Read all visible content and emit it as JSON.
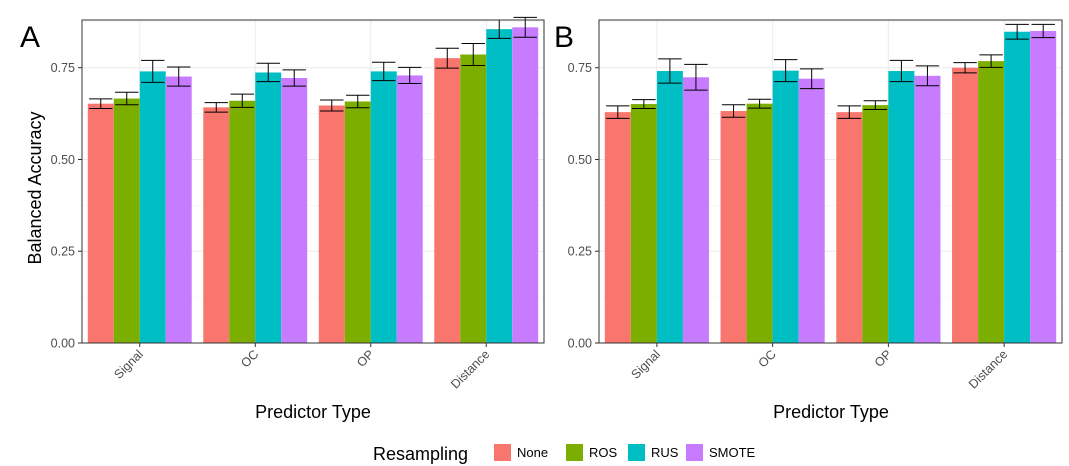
{
  "legend": {
    "title": "Resampling",
    "entries": [
      {
        "name": "None",
        "color": "#F8766D"
      },
      {
        "name": "ROS",
        "color": "#7CAE00"
      },
      {
        "name": "RUS",
        "color": "#00BFC4"
      },
      {
        "name": "SMOTE",
        "color": "#C77CFF"
      }
    ]
  },
  "chart_data": [
    {
      "type": "bar",
      "panel": "A",
      "categories": [
        "Signal",
        "OC",
        "OP",
        "Distance"
      ],
      "xlabel": "Predictor Type",
      "ylabel": "Balanced Accuracy",
      "ylim": [
        0,
        0.88
      ],
      "yticks": [
        "0.00",
        "0.25",
        "0.50",
        "0.75"
      ],
      "series": [
        {
          "name": "None",
          "values": [
            0.652,
            0.642,
            0.647,
            0.776
          ],
          "err": [
            0.013,
            0.013,
            0.015,
            0.027
          ]
        },
        {
          "name": "ROS",
          "values": [
            0.666,
            0.66,
            0.658,
            0.786
          ],
          "err": [
            0.017,
            0.018,
            0.017,
            0.03
          ]
        },
        {
          "name": "RUS",
          "values": [
            0.74,
            0.737,
            0.74,
            0.855
          ],
          "err": [
            0.03,
            0.025,
            0.025,
            0.025
          ]
        },
        {
          "name": "SMOTE",
          "values": [
            0.726,
            0.722,
            0.729,
            0.86
          ],
          "err": [
            0.026,
            0.022,
            0.022,
            0.027
          ]
        }
      ],
      "grid": true,
      "legend_position": "bottom"
    },
    {
      "type": "bar",
      "panel": "B",
      "categories": [
        "Signal",
        "OC",
        "OP",
        "Distance"
      ],
      "xlabel": "Predictor Type",
      "ylabel": "",
      "ylim": [
        0,
        0.88
      ],
      "yticks": [
        "0.00",
        "0.25",
        "0.50",
        "0.75"
      ],
      "series": [
        {
          "name": "None",
          "values": [
            0.629,
            0.632,
            0.629,
            0.75
          ],
          "err": [
            0.017,
            0.017,
            0.017,
            0.014
          ]
        },
        {
          "name": "ROS",
          "values": [
            0.651,
            0.652,
            0.648,
            0.768
          ],
          "err": [
            0.012,
            0.012,
            0.012,
            0.017
          ]
        },
        {
          "name": "RUS",
          "values": [
            0.741,
            0.742,
            0.741,
            0.848
          ],
          "err": [
            0.033,
            0.03,
            0.029,
            0.02
          ]
        },
        {
          "name": "SMOTE",
          "values": [
            0.724,
            0.72,
            0.728,
            0.85
          ],
          "err": [
            0.035,
            0.027,
            0.027,
            0.018
          ]
        }
      ],
      "grid": true,
      "legend_position": "bottom"
    }
  ]
}
